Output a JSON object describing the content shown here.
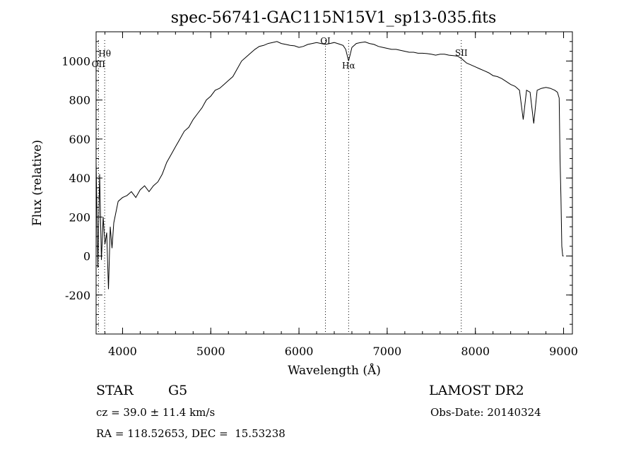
{
  "chart_data": {
    "type": "line",
    "title": "spec-56741-GAC115N15V1_sp13-035.fits",
    "xlabel": "Wavelength (Å)",
    "ylabel": "Flux (relative)",
    "xlim": [
      3700,
      9100
    ],
    "ylim": [
      -400,
      1150
    ],
    "xticks": [
      4000,
      5000,
      6000,
      7000,
      8000,
      9000
    ],
    "yticks": [
      -200,
      0,
      200,
      400,
      600,
      800,
      1000
    ],
    "series": [
      {
        "x": [
          3700,
          3720,
          3740,
          3760,
          3780,
          3800,
          3820,
          3840,
          3860,
          3880,
          3900,
          3950,
          4000,
          4050,
          4100,
          4150,
          4200,
          4250,
          4300,
          4350,
          4400,
          4450,
          4500,
          4550,
          4600,
          4650,
          4700,
          4750,
          4800,
          4850,
          4900,
          4950,
          5000,
          5050,
          5100,
          5150,
          5200,
          5250,
          5300,
          5350,
          5400,
          5450,
          5500,
          5550,
          5600,
          5650,
          5700,
          5750,
          5800,
          5850,
          5900,
          5950,
          6000,
          6050,
          6100,
          6150,
          6200,
          6250,
          6300,
          6350,
          6400,
          6450,
          6500,
          6530,
          6563,
          6600,
          6650,
          6700,
          6750,
          6800,
          6850,
          6900,
          6950,
          7000,
          7050,
          7100,
          7150,
          7200,
          7250,
          7300,
          7350,
          7400,
          7450,
          7500,
          7550,
          7600,
          7650,
          7700,
          7750,
          7800,
          7850,
          7900,
          7950,
          8000,
          8050,
          8100,
          8150,
          8200,
          8250,
          8300,
          8350,
          8400,
          8450,
          8500,
          8542,
          8580,
          8620,
          8662,
          8700,
          8750,
          8800,
          8850,
          8900,
          8930,
          8950,
          8960,
          8970,
          8980,
          8990,
          9000
        ],
        "y": [
          480,
          -60,
          420,
          -20,
          200,
          60,
          120,
          -170,
          150,
          40,
          170,
          280,
          300,
          310,
          330,
          300,
          340,
          360,
          330,
          360,
          380,
          420,
          480,
          520,
          560,
          600,
          640,
          660,
          700,
          730,
          760,
          800,
          820,
          850,
          860,
          880,
          900,
          920,
          960,
          1000,
          1020,
          1040,
          1060,
          1075,
          1080,
          1090,
          1095,
          1100,
          1090,
          1085,
          1080,
          1078,
          1070,
          1075,
          1085,
          1090,
          1095,
          1090,
          1085,
          1090,
          1095,
          1088,
          1080,
          1060,
          1000,
          1070,
          1090,
          1095,
          1098,
          1090,
          1085,
          1075,
          1070,
          1065,
          1060,
          1060,
          1055,
          1050,
          1045,
          1045,
          1040,
          1040,
          1038,
          1035,
          1030,
          1035,
          1035,
          1030,
          1028,
          1025,
          1010,
          990,
          980,
          970,
          960,
          950,
          940,
          925,
          920,
          910,
          895,
          880,
          870,
          850,
          700,
          850,
          840,
          680,
          850,
          860,
          865,
          860,
          850,
          840,
          810,
          500,
          300,
          50,
          0,
          0
        ]
      }
    ],
    "line_markers": [
      {
        "label": "Hθ",
        "x": 3797
      },
      {
        "label": "OII",
        "x": 3727
      },
      {
        "label": "OI",
        "x": 6300
      },
      {
        "label": "Hα",
        "x": 6563
      },
      {
        "label": "SII",
        "x": 7840
      }
    ],
    "grid": false
  },
  "info": {
    "object_type": "STAR",
    "subclass": "G5",
    "survey": "LAMOST DR2",
    "redshift": "cz = 39.0 ± 11.4 km/s",
    "obs_date": "Obs-Date: 20140324",
    "coords": "RA = 118.52653, DEC =  15.53238"
  }
}
